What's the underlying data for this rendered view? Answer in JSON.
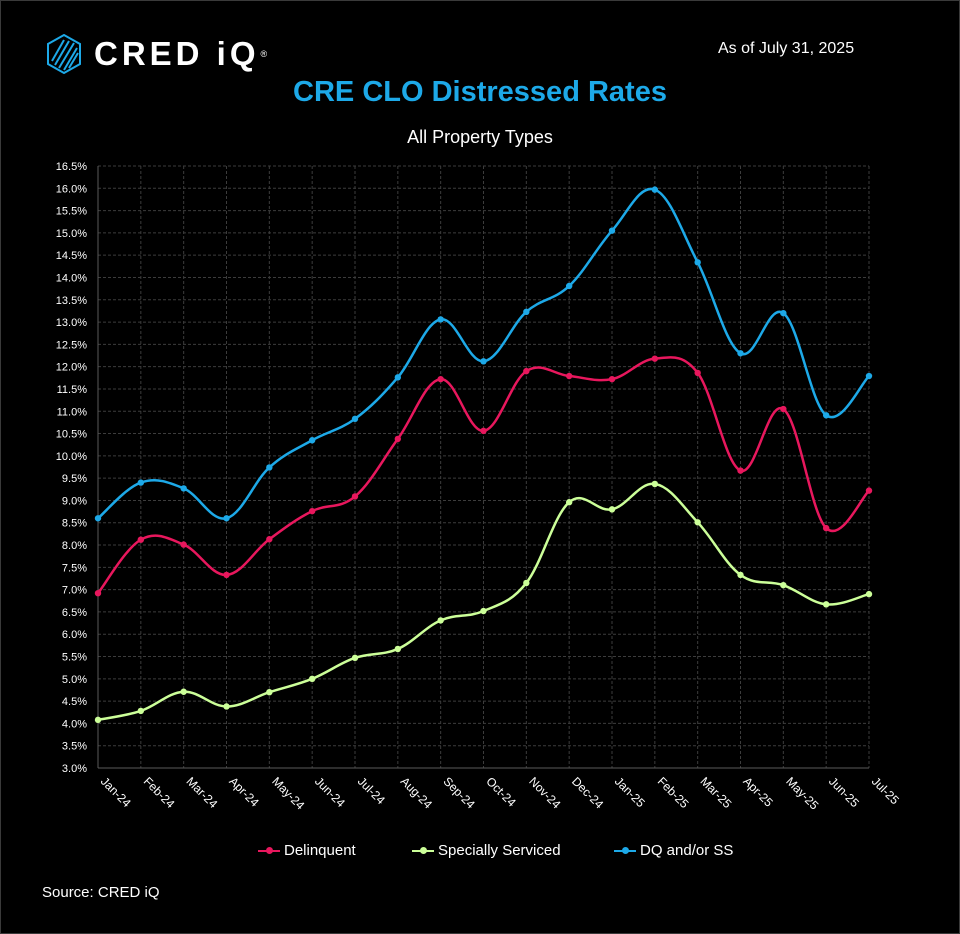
{
  "header": {
    "brand": "CRED iQ",
    "brand_mark": "®",
    "as_of": "As of July 31, 2025"
  },
  "chart_data": {
    "type": "line",
    "title": "CRE CLO Distressed Rates",
    "subtitle": "All Property Types",
    "categories": [
      "Jan-24",
      "Feb-24",
      "Mar-24",
      "Apr-24",
      "May-24",
      "Jun-24",
      "Jul-24",
      "Aug-24",
      "Sep-24",
      "Oct-24",
      "Nov-24",
      "Dec-24",
      "Jan-25",
      "Feb-25",
      "Mar-25",
      "Apr-25",
      "May-25",
      "Jun-25",
      "Jul-25"
    ],
    "y_ticks": [
      "3.0%",
      "3.5%",
      "4.0%",
      "4.5%",
      "5.0%",
      "5.5%",
      "6.0%",
      "6.5%",
      "7.0%",
      "7.5%",
      "8.0%",
      "8.5%",
      "9.0%",
      "9.5%",
      "10.0%",
      "10.5%",
      "11.0%",
      "11.5%",
      "12.0%",
      "12.5%",
      "13.0%",
      "13.5%",
      "14.0%",
      "14.5%",
      "15.0%",
      "15.5%",
      "16.0%",
      "16.5%"
    ],
    "ylim": [
      3.0,
      16.5
    ],
    "y_unit": "%",
    "grid": true,
    "legend_position": "bottom",
    "series": [
      {
        "name": "Delinquent",
        "color": "#e8175d",
        "values": [
          6.92,
          8.12,
          8.01,
          7.33,
          8.13,
          8.76,
          9.09,
          10.38,
          11.72,
          10.56,
          11.9,
          11.79,
          11.72,
          12.18,
          11.86,
          9.67,
          11.05,
          8.38,
          9.22
        ]
      },
      {
        "name": "Specially Serviced",
        "color": "#ccff99",
        "values": [
          4.08,
          4.28,
          4.71,
          4.38,
          4.7,
          5.0,
          5.47,
          5.67,
          6.31,
          6.52,
          7.15,
          8.96,
          8.8,
          9.37,
          8.51,
          7.33,
          7.1,
          6.67,
          6.9
        ]
      },
      {
        "name": "DQ and/or SS",
        "color": "#1da9e8",
        "values": [
          8.6,
          9.4,
          9.27,
          8.6,
          9.74,
          10.35,
          10.83,
          11.76,
          13.06,
          12.12,
          13.23,
          13.81,
          15.05,
          15.97,
          14.34,
          12.3,
          13.2,
          10.91,
          11.79
        ]
      }
    ]
  },
  "footer": {
    "source": "Source:  CRED iQ"
  }
}
